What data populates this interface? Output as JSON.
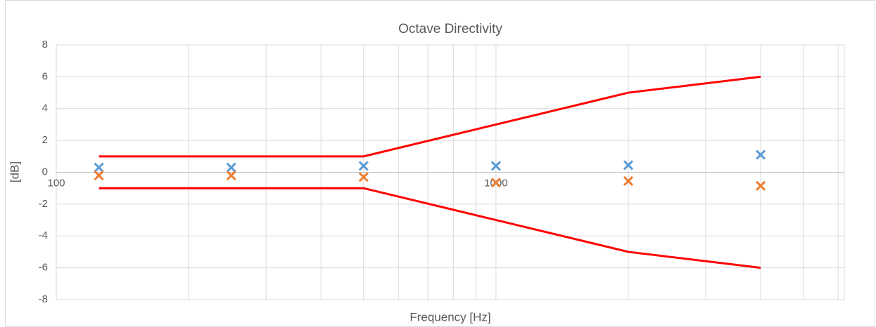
{
  "chart_data": {
    "type": "line",
    "title": "Octave Directivity",
    "x_label": "Frequency [Hz]",
    "y_label": "[dB]",
    "x": [
      125,
      250,
      500,
      1000,
      2000,
      4000
    ],
    "xlog": true,
    "xlim": [
      100,
      6200
    ],
    "xticks": [
      100,
      1000
    ],
    "ylim": [
      -8,
      8
    ],
    "yticks": [
      -8,
      -6,
      -4,
      -2,
      0,
      2,
      4,
      6,
      8
    ],
    "grid": true,
    "series": [
      {
        "style": "markers",
        "color": "#5b9bd5",
        "values": [
          0.3,
          0.3,
          0.4,
          0.4,
          0.45,
          1.1
        ]
      },
      {
        "style": "markers",
        "color": "#ed7d31",
        "values": [
          -0.2,
          -0.2,
          -0.3,
          -0.65,
          -0.55,
          -0.85
        ]
      },
      {
        "style": "line",
        "color": "#ff0000",
        "values": [
          1,
          1,
          1,
          3,
          5,
          6
        ]
      },
      {
        "style": "line",
        "color": "#ff0000",
        "values": [
          -1,
          -1,
          -1,
          -3,
          -5,
          -6
        ]
      }
    ]
  }
}
